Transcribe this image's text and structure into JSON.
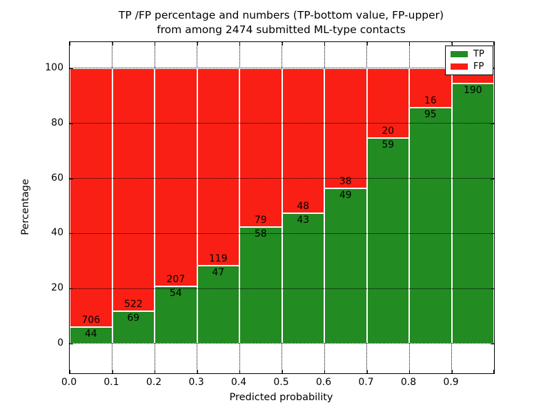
{
  "figure": {
    "title_line1": "TP /FP percentage and numbers (TP-bottom value, FP-upper)",
    "title_line2": "from among 2474 submitted ML-type contacts"
  },
  "legend": {
    "items": [
      {
        "name": "TP",
        "color": "#228b22"
      },
      {
        "name": "FP",
        "color": "#fa1f14"
      }
    ]
  },
  "chart_data": {
    "type": "bar",
    "variant": "stacked-percentage",
    "title": "TP /FP percentage and numbers (TP-bottom value, FP-upper) from among 2474 submitted ML-type contacts",
    "xlabel": "Predicted probability",
    "ylabel": "Percentage",
    "total_submitted_contacts": 2474,
    "x_tick_labels": [
      "0.0",
      "0.1",
      "0.2",
      "0.3",
      "0.4",
      "0.5",
      "0.6",
      "0.7",
      "0.8",
      "0.9"
    ],
    "y_ticks": [
      0,
      20,
      40,
      60,
      80,
      100
    ],
    "xlim": [
      0.0,
      1.0
    ],
    "ylim": [
      -10.8,
      109.5
    ],
    "grid": "dotted",
    "legend_position": "upper right",
    "bin_width": 0.1,
    "series": [
      {
        "name": "TP",
        "color": "#228b22",
        "counts": [
          44,
          69,
          54,
          47,
          58,
          43,
          49,
          59,
          95,
          190
        ]
      },
      {
        "name": "FP",
        "color": "#fa1f14",
        "counts": [
          706,
          522,
          207,
          119,
          79,
          48,
          38,
          20,
          16,
          null
        ]
      }
    ],
    "tp_percent": [
      5.9,
      11.7,
      20.7,
      28.3,
      42.3,
      47.3,
      56.3,
      74.7,
      85.6,
      94.5
    ],
    "note_visible_state": "FP count label of the last bin is hidden behind the legend"
  }
}
